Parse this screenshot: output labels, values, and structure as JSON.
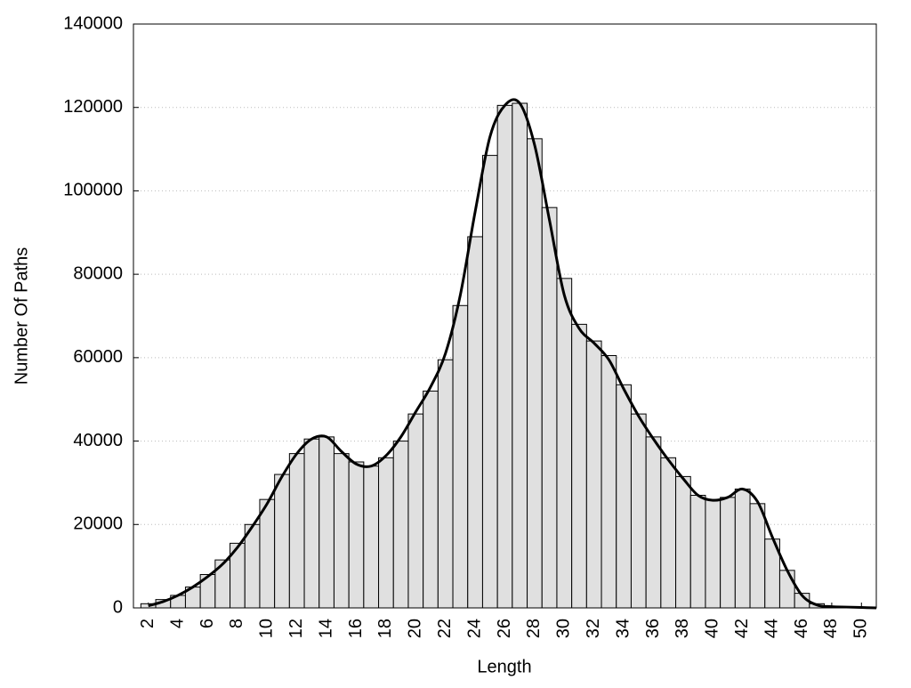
{
  "chart_data": {
    "type": "histogram",
    "xlabel": "Length",
    "ylabel": "Number Of Paths",
    "bins": [
      1.5,
      2.5,
      3.5,
      4.5,
      5.5,
      6.5,
      7.5,
      8.5,
      9.5,
      10.5,
      11.5,
      12.5,
      13.5,
      14.5,
      15.5,
      16.5,
      17.5,
      18.5,
      19.5,
      20.5,
      21.5,
      22.5,
      23.5,
      24.5,
      25.5,
      26.5,
      27.5,
      28.5,
      29.5,
      30.5,
      31.5,
      32.5,
      33.5,
      34.5,
      35.5,
      36.5,
      37.5,
      38.5,
      39.5,
      40.5,
      41.5,
      42.5,
      43.5,
      44.5,
      45.5,
      46.5,
      47.5,
      48.5,
      49.5,
      50.5
    ],
    "counts": [
      1000,
      2000,
      3000,
      5000,
      8000,
      11500,
      15500,
      20000,
      26000,
      32000,
      37000,
      40500,
      41000,
      37000,
      35000,
      34000,
      36000,
      40000,
      46500,
      52000,
      59500,
      72500,
      89000,
      108500,
      120500,
      121000,
      112500,
      96000,
      79000,
      68000,
      64000,
      60500,
      53500,
      46500,
      41000,
      36000,
      31500,
      27000,
      26000,
      26500,
      28500,
      25000,
      16500,
      9000,
      3500,
      1000,
      300,
      100,
      0
    ],
    "color": "#e0e0e0",
    "curve": {
      "type": "line",
      "color": "#000000",
      "x": [
        2,
        3,
        4,
        5,
        6,
        7,
        8,
        9,
        10,
        11,
        12,
        13,
        14,
        15,
        16,
        17,
        18,
        19,
        20,
        21,
        22,
        23,
        24,
        25,
        26,
        27,
        28,
        29,
        30,
        31,
        32,
        33,
        34,
        35,
        36,
        37,
        38,
        39,
        40,
        41,
        42,
        43,
        44,
        45,
        46,
        47,
        48,
        49,
        50,
        51
      ],
      "values": [
        500,
        1500,
        3000,
        5000,
        7500,
        10500,
        14500,
        19500,
        25000,
        31500,
        37000,
        40500,
        41000,
        37500,
        34500,
        34000,
        36500,
        41000,
        47000,
        53000,
        61000,
        75000,
        95000,
        113000,
        120500,
        121000,
        111000,
        93000,
        75000,
        67000,
        63500,
        59500,
        52500,
        46000,
        40500,
        35500,
        31000,
        27000,
        25800,
        26500,
        28500,
        25500,
        17000,
        9000,
        3000,
        700,
        300,
        200,
        100,
        0
      ]
    },
    "xlim": [
      1,
      51
    ],
    "ylim": [
      0,
      140000
    ],
    "xticks": [
      2,
      4,
      6,
      8,
      10,
      12,
      14,
      16,
      18,
      20,
      22,
      24,
      26,
      28,
      30,
      32,
      34,
      36,
      38,
      40,
      42,
      44,
      46,
      48,
      50
    ],
    "yticks": [
      0,
      20000,
      40000,
      60000,
      80000,
      100000,
      120000,
      140000
    ],
    "grid": true
  }
}
